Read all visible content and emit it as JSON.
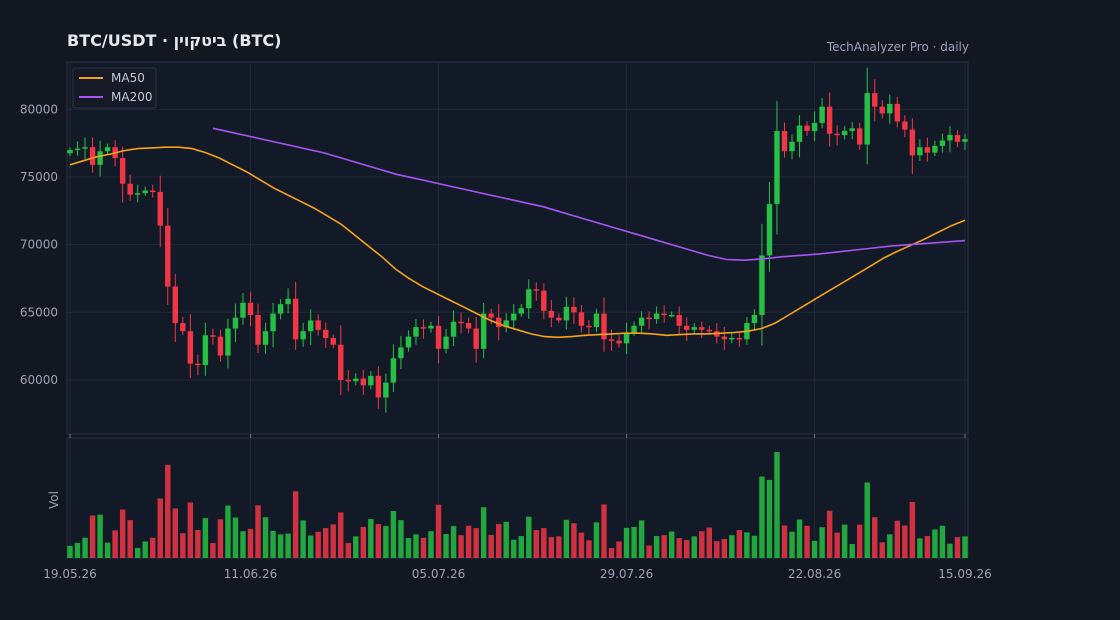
{
  "chart_data": {
    "type": "candlestick",
    "title": "BTC/USDT  ·  ביטקוין (BTC)",
    "source_label": "TechAnalyzer Pro · daily",
    "price_axis": {
      "ylim": [
        56000,
        83500
      ],
      "ticks": [
        60000,
        65000,
        70000,
        75000,
        80000
      ]
    },
    "date_axis": {
      "tick_labels": [
        "19.05.26",
        "11.06.26",
        "05.07.26",
        "29.07.26",
        "22.08.26",
        "15.09.26"
      ]
    },
    "volume_label": "Vol",
    "legend": {
      "placement": "top-left",
      "entries": [
        {
          "name": "MA50",
          "color": "#f7a21b"
        },
        {
          "name": "MA200",
          "color": "#a855f7"
        }
      ]
    },
    "colors": {
      "up": "#26c144",
      "down": "#f23645",
      "background": "#131722",
      "grid": "#222838"
    },
    "close_series": [
      77000,
      77100,
      77200,
      75900,
      76900,
      77200,
      76400,
      74500,
      73700,
      73800,
      74000,
      73900,
      71400,
      66900,
      64200,
      63600,
      61200,
      61100,
      63300,
      63200,
      61800,
      63800,
      64600,
      65700,
      64800,
      62600,
      63600,
      64900,
      65600,
      66000,
      63000,
      63600,
      64400,
      63700,
      63100,
      62600,
      60000,
      59900,
      60100,
      59600,
      60300,
      58700,
      59800,
      61600,
      62400,
      63200,
      63900,
      63800,
      64000,
      62300,
      63200,
      64300,
      64200,
      63800,
      62300,
      64900,
      64600,
      63900,
      64400,
      64900,
      65300,
      66700,
      66600,
      65100,
      64600,
      64400,
      65400,
      65000,
      64000,
      63900,
      64900,
      63000,
      62900,
      62700,
      63500,
      64000,
      64600,
      64500,
      64900,
      64800,
      64800,
      64000,
      63700,
      63900,
      63700,
      63600,
      63200,
      63000,
      63100,
      63000,
      64200,
      64800,
      69200,
      73000,
      78400,
      76900,
      77600,
      78800,
      78400,
      79000,
      80200,
      78200,
      78100,
      78400,
      78600,
      77400,
      81200,
      80200,
      79700,
      80400,
      79100,
      78500,
      76600,
      77200,
      76800,
      77300,
      77700,
      78100,
      77600,
      77800
    ],
    "ma50": [
      75900,
      76200,
      76500,
      76700,
      76950,
      77100,
      77150,
      77200,
      77200,
      77100,
      76800,
      76400,
      75900,
      75400,
      74800,
      74200,
      73700,
      73200,
      72700,
      72100,
      71500,
      70700,
      69900,
      69100,
      68200,
      67500,
      66900,
      66400,
      65900,
      65400,
      64900,
      64400,
      64000,
      63700,
      63400,
      63200,
      63150,
      63200,
      63300,
      63350,
      63400,
      63450,
      63450,
      63400,
      63300,
      63350,
      63400,
      63400,
      63450,
      63500,
      63600,
      63800,
      64200,
      64800,
      65400,
      66000,
      66600,
      67200,
      67800,
      68400,
      69000,
      69500,
      69950,
      70400,
      70900,
      71400,
      71800
    ],
    "ma200": [
      78600,
      78300,
      78000,
      77700,
      77400,
      77100,
      76800,
      76400,
      76000,
      75600,
      75200,
      74900,
      74600,
      74300,
      74000,
      73700,
      73400,
      73100,
      72800,
      72400,
      72000,
      71600,
      71200,
      70800,
      70400,
      70000,
      69600,
      69200,
      68900,
      68850,
      68950,
      69100,
      69200,
      69300,
      69450,
      69600,
      69750,
      69900,
      70000,
      70100,
      70200,
      70300
    ]
  }
}
